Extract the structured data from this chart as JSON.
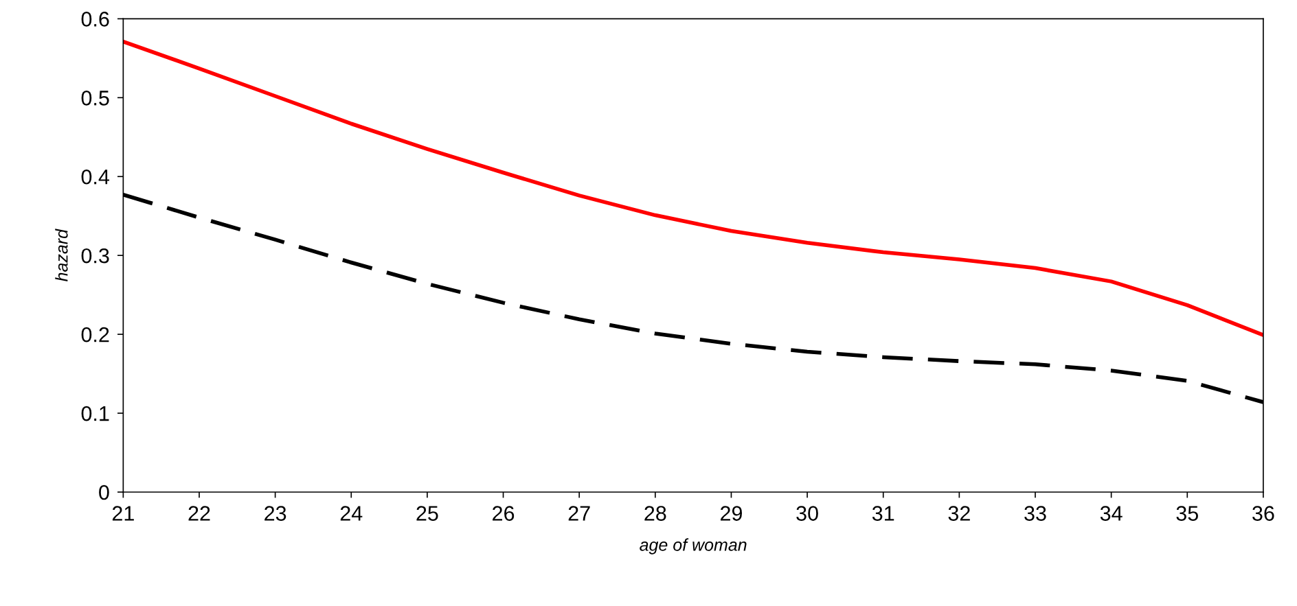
{
  "chart_data": {
    "type": "line",
    "xlabel": "age of woman",
    "ylabel": "hazard",
    "x": [
      21,
      22,
      23,
      24,
      25,
      26,
      27,
      28,
      29,
      30,
      31,
      32,
      33,
      34,
      35,
      36
    ],
    "series": [
      {
        "color": "#ff0000",
        "line_style": "solid",
        "values": [
          0.571,
          0.537,
          0.502,
          0.467,
          0.435,
          0.405,
          0.376,
          0.351,
          0.331,
          0.316,
          0.304,
          0.295,
          0.284,
          0.267,
          0.237,
          0.199
        ]
      },
      {
        "color": "#000000",
        "line_style": "dashed",
        "values": [
          0.377,
          0.348,
          0.32,
          0.291,
          0.264,
          0.24,
          0.219,
          0.201,
          0.188,
          0.178,
          0.171,
          0.166,
          0.162,
          0.154,
          0.141,
          0.114
        ]
      }
    ],
    "xlim": [
      21,
      36
    ],
    "xticks": [
      21,
      22,
      23,
      24,
      25,
      26,
      27,
      28,
      29,
      30,
      31,
      32,
      33,
      34,
      35,
      36
    ],
    "ylim": [
      0,
      0.6
    ],
    "yticks": [
      0,
      0.1,
      0.2,
      0.3,
      0.4,
      0.5,
      0.6
    ],
    "grid": false,
    "legend": false,
    "marker": "none"
  }
}
